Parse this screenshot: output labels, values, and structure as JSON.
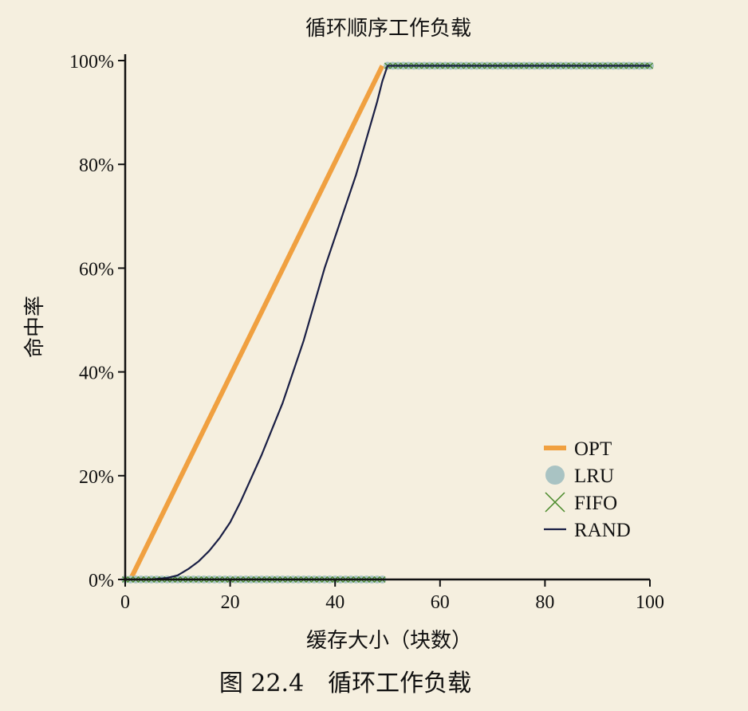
{
  "caption": "图 22.4　循环工作负载",
  "chart_data": {
    "type": "line",
    "title": "循环顺序工作负载",
    "xlabel": "缓存大小（块数）",
    "ylabel": "命中率",
    "xlim": [
      0,
      100
    ],
    "ylim": [
      0,
      100
    ],
    "x_ticks": [
      0,
      20,
      40,
      60,
      80,
      100
    ],
    "y_ticks": [
      0,
      20,
      40,
      60,
      80,
      100
    ],
    "y_tick_labels": [
      "0%",
      "20%",
      "40%",
      "60%",
      "80%",
      "100%"
    ],
    "grid": false,
    "legend_position": "bottom-right",
    "series": [
      {
        "name": "OPT",
        "color": "#f0a040",
        "style": "thick-line",
        "x": [
          1,
          49
        ],
        "y": [
          0,
          99
        ]
      },
      {
        "name": "LRU",
        "color": "#a9c3c3",
        "style": "circles",
        "x": [
          0,
          1,
          2,
          3,
          4,
          5,
          6,
          7,
          8,
          9,
          10,
          11,
          12,
          13,
          14,
          15,
          16,
          17,
          18,
          19,
          20,
          21,
          22,
          23,
          24,
          25,
          26,
          27,
          28,
          29,
          30,
          31,
          32,
          33,
          34,
          35,
          36,
          37,
          38,
          39,
          40,
          41,
          42,
          43,
          44,
          45,
          46,
          47,
          48,
          49,
          50,
          51,
          52,
          53,
          54,
          55,
          56,
          57,
          58,
          59,
          60,
          61,
          62,
          63,
          64,
          65,
          66,
          67,
          68,
          69,
          70,
          71,
          72,
          73,
          74,
          75,
          76,
          77,
          78,
          79,
          80,
          81,
          82,
          83,
          84,
          85,
          86,
          87,
          88,
          89,
          90,
          91,
          92,
          93,
          94,
          95,
          96,
          97,
          98,
          99,
          100
        ],
        "y": [
          0,
          0,
          0,
          0,
          0,
          0,
          0,
          0,
          0,
          0,
          0,
          0,
          0,
          0,
          0,
          0,
          0,
          0,
          0,
          0,
          0,
          0,
          0,
          0,
          0,
          0,
          0,
          0,
          0,
          0,
          0,
          0,
          0,
          0,
          0,
          0,
          0,
          0,
          0,
          0,
          0,
          0,
          0,
          0,
          0,
          0,
          0,
          0,
          0,
          0,
          99,
          99,
          99,
          99,
          99,
          99,
          99,
          99,
          99,
          99,
          99,
          99,
          99,
          99,
          99,
          99,
          99,
          99,
          99,
          99,
          99,
          99,
          99,
          99,
          99,
          99,
          99,
          99,
          99,
          99,
          99,
          99,
          99,
          99,
          99,
          99,
          99,
          99,
          99,
          99,
          99,
          99,
          99,
          99,
          99,
          99,
          99,
          99,
          99,
          99,
          99
        ]
      },
      {
        "name": "FIFO",
        "color": "#4a8a2a",
        "style": "crosses",
        "x": [
          0,
          1,
          2,
          3,
          4,
          5,
          6,
          7,
          8,
          9,
          10,
          11,
          12,
          13,
          14,
          15,
          16,
          17,
          18,
          19,
          20,
          21,
          22,
          23,
          24,
          25,
          26,
          27,
          28,
          29,
          30,
          31,
          32,
          33,
          34,
          35,
          36,
          37,
          38,
          39,
          40,
          41,
          42,
          43,
          44,
          45,
          46,
          47,
          48,
          49,
          50,
          51,
          52,
          53,
          54,
          55,
          56,
          57,
          58,
          59,
          60,
          61,
          62,
          63,
          64,
          65,
          66,
          67,
          68,
          69,
          70,
          71,
          72,
          73,
          74,
          75,
          76,
          77,
          78,
          79,
          80,
          81,
          82,
          83,
          84,
          85,
          86,
          87,
          88,
          89,
          90,
          91,
          92,
          93,
          94,
          95,
          96,
          97,
          98,
          99,
          100
        ],
        "y": [
          0,
          0,
          0,
          0,
          0,
          0,
          0,
          0,
          0,
          0,
          0,
          0,
          0,
          0,
          0,
          0,
          0,
          0,
          0,
          0,
          0,
          0,
          0,
          0,
          0,
          0,
          0,
          0,
          0,
          0,
          0,
          0,
          0,
          0,
          0,
          0,
          0,
          0,
          0,
          0,
          0,
          0,
          0,
          0,
          0,
          0,
          0,
          0,
          0,
          0,
          99,
          99,
          99,
          99,
          99,
          99,
          99,
          99,
          99,
          99,
          99,
          99,
          99,
          99,
          99,
          99,
          99,
          99,
          99,
          99,
          99,
          99,
          99,
          99,
          99,
          99,
          99,
          99,
          99,
          99,
          99,
          99,
          99,
          99,
          99,
          99,
          99,
          99,
          99,
          99,
          99,
          99,
          99,
          99,
          99,
          99,
          99,
          99,
          99,
          99,
          99
        ]
      },
      {
        "name": "RAND",
        "color": "#1a1f45",
        "style": "thin-line",
        "x": [
          0,
          5,
          8,
          10,
          12,
          14,
          16,
          18,
          20,
          22,
          24,
          26,
          28,
          30,
          32,
          34,
          36,
          38,
          40,
          42,
          44,
          46,
          48,
          49,
          50,
          55,
          60,
          70,
          80,
          90,
          100
        ],
        "y": [
          0,
          0,
          0.3,
          0.8,
          2,
          3.5,
          5.5,
          8,
          11,
          15,
          19.5,
          24,
          29,
          34,
          40,
          46,
          53,
          60,
          66,
          72,
          78,
          85,
          92,
          96,
          99,
          99,
          99,
          99,
          99,
          99,
          99
        ]
      }
    ]
  }
}
